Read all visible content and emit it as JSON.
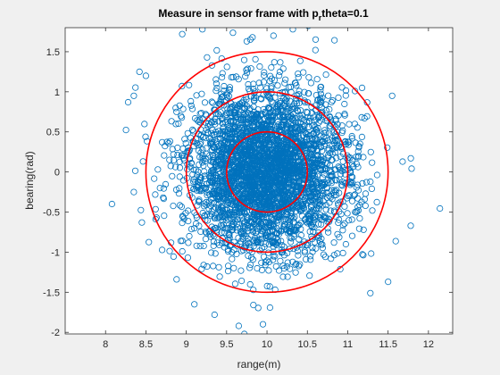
{
  "chart_data": {
    "type": "scatter",
    "title_main": "Measure in sensor frame with p",
    "title_sub": "r",
    "title_tail": "theta=0.1",
    "xlabel": "range(m)",
    "ylabel": "bearing(rad)",
    "xlim": [
      7.5,
      12.3
    ],
    "ylim": [
      -2.02,
      1.8
    ],
    "xticks": [
      8,
      8.5,
      9,
      9.5,
      10,
      10.5,
      11,
      11.5,
      12
    ],
    "xtick_labels": [
      "8",
      "8.5",
      "9",
      "9.5",
      "10",
      "10.5",
      "11",
      "11.5",
      "12"
    ],
    "yticks": [
      -2,
      -1.5,
      -1,
      -0.5,
      0,
      0.5,
      1,
      1.5
    ],
    "ytick_labels": [
      "-2",
      "-1.5",
      "-1",
      "-0.5",
      "0",
      "0.5",
      "1",
      "1.5"
    ],
    "grid": false,
    "legend": "none",
    "scatter_series": {
      "marker": "circle",
      "color": "#0072BD",
      "center": [
        10,
        0
      ],
      "std": [
        0.5,
        0.5
      ],
      "count": 3500,
      "seed": 7
    },
    "outlier_points": [
      [
        8.08,
        -0.4
      ],
      [
        8.28,
        0.87
      ],
      [
        8.35,
        0.95
      ],
      [
        8.42,
        1.25
      ],
      [
        8.5,
        1.2
      ],
      [
        8.95,
        1.72
      ],
      [
        9.2,
        1.78
      ],
      [
        9.75,
        1.63
      ],
      [
        9.82,
        1.68
      ],
      [
        10.08,
        1.7
      ],
      [
        10.32,
        1.78
      ],
      [
        10.6,
        1.52
      ],
      [
        11.55,
        0.95
      ],
      [
        11.68,
        0.13
      ],
      [
        11.78,
        -0.67
      ],
      [
        11.5,
        -1.37
      ],
      [
        9.1,
        -1.65
      ],
      [
        9.35,
        -1.78
      ],
      [
        9.65,
        -1.92
      ],
      [
        9.72,
        -2.02
      ],
      [
        9.95,
        -1.9
      ],
      [
        8.45,
        -0.63
      ],
      [
        8.35,
        -0.25
      ]
    ],
    "ellipses": [
      {
        "center": [
          10,
          0
        ],
        "radius": [
          0.5,
          0.5
        ],
        "color": "#FF0000"
      },
      {
        "center": [
          10,
          0
        ],
        "radius": [
          1.0,
          1.0
        ],
        "color": "#FF0000"
      },
      {
        "center": [
          10,
          0
        ],
        "radius": [
          1.5,
          1.5
        ],
        "color": "#FF0000"
      }
    ],
    "colors": {
      "figure_background": "#f0f0f0",
      "axes_background": "#ffffff",
      "axes_line": "#262626"
    }
  }
}
